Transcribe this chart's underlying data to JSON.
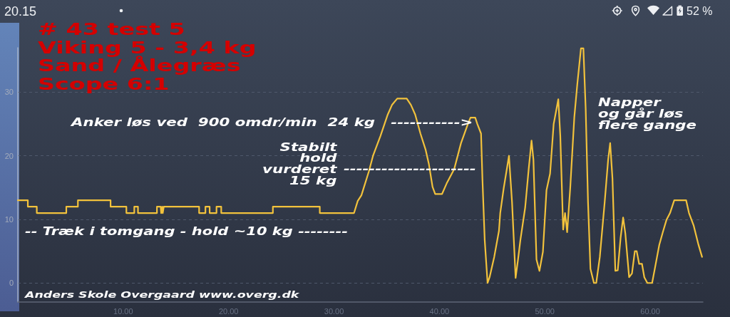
{
  "chart_data": {
    "type": "line",
    "title": "# 43 test 5",
    "subtitle": "Viking 5 - 3,4 kg\nSand / Ålegræs\nScope 6:1",
    "annotations": [
      "Anker løs ved  900 omdr/min  24 kg   ----------->",
      "Stabilt\nhold\nvurderet\n15 kg",
      "---------------------",
      "-- Træk i tomgang - hold ~10 kg --------",
      "Napper\nog går løs\nflere gange",
      "Anders Skole Overgaard www.overg.dk",
      "20.15",
      "52 %"
    ],
    "x": [
      0,
      0.95,
      0.95,
      1.8,
      1.8,
      4.6,
      4.6,
      5.7,
      5.7,
      8.8,
      8.8,
      10.3,
      10.3,
      11.05,
      11.05,
      11.4,
      11.4,
      13.2,
      13.2,
      13.55,
      13.6,
      13.7,
      13.75,
      13.85,
      17.2,
      17.2,
      17.8,
      17.8,
      18.2,
      18.2,
      18.85,
      18.85,
      19.3,
      19.3,
      24.2,
      24.2,
      28.65,
      28.65,
      31.9,
      32.25,
      32.6,
      33.3,
      33.7,
      34.4,
      35.1,
      35.5,
      36,
      36.9,
      37.3,
      37.7,
      38.2,
      38.7,
      39,
      39.35,
      39.6,
      40.25,
      40.7,
      41.4,
      42.05,
      42.7,
      42.95,
      43.4,
      43.6,
      43.95,
      44.08,
      44.3,
      44.57,
      44.76,
      45.2,
      45.65,
      45.77,
      46.1,
      46.6,
      46.89,
      47.23,
      47.46,
      47.68,
      48.14,
      48.47,
      48.74,
      48.92,
      49.21,
      49.49,
      49.82,
      50.16,
      50.5,
      50.84,
      51.28,
      51.47,
      51.74,
      51.92,
      52.12,
      52.41,
      52.8,
      53.09,
      53.43,
      53.66,
      53.88,
      54.1,
      54.33,
      54.66,
      54.88,
      55.22,
      55.68,
      56.01,
      56.2,
      56.42,
      56.69,
      56.92,
      57.19,
      57.43,
      57.64,
      58,
      58.27,
      58.54,
      58.72,
      58.95,
      59.22,
      59.44,
      59.73,
      60.18,
      60.41,
      60.86,
      61.2,
      61.54,
      61.88,
      62.28,
      63.41,
      63.68,
      64.13,
      64.58,
      64.92
    ],
    "values": [
      13,
      13,
      12,
      12,
      11,
      11,
      12,
      12,
      13,
      13,
      12,
      12,
      11,
      11,
      12,
      12,
      11,
      11,
      12,
      12,
      11,
      12,
      11,
      12,
      12,
      11,
      11,
      12,
      12,
      11,
      11,
      12,
      12,
      11,
      11,
      12,
      12,
      11,
      11,
      12.9,
      13.8,
      17.5,
      20,
      23.1,
      26.5,
      28,
      29,
      29,
      28,
      26.5,
      23.5,
      20.9,
      18.7,
      15.1,
      14,
      14,
      15.7,
      17.9,
      22,
      25,
      26,
      26,
      25,
      23.5,
      16.4,
      6.7,
      0,
      0.9,
      4.1,
      8.2,
      11,
      14.9,
      20,
      12.7,
      0.8,
      3.7,
      6.7,
      11.9,
      17.9,
      22.4,
      19.4,
      3.7,
      1.9,
      4.9,
      14.6,
      17.2,
      25,
      28.9,
      23.1,
      8.4,
      11,
      8,
      14.9,
      26.1,
      31.4,
      36.9,
      36.9,
      27.3,
      12.7,
      2.2,
      0,
      0,
      4.1,
      12.7,
      19.4,
      22,
      16.4,
      1.9,
      2,
      7.1,
      10.3,
      7.8,
      0.9,
      1.5,
      5,
      5,
      3,
      3,
      0.9,
      0,
      0,
      2,
      6,
      8,
      9.9,
      11,
      13,
      13,
      11,
      9,
      6,
      4.1
    ],
    "color": "#f2c23c",
    "xlim": [
      0,
      65
    ],
    "xticks": [
      {
        "value": 10,
        "label": "10.00"
      },
      {
        "value": 20,
        "label": "20.00"
      },
      {
        "value": 30,
        "label": "30.00"
      },
      {
        "value": 40,
        "label": "40.00"
      },
      {
        "value": 50,
        "label": "50.00"
      },
      {
        "value": 60,
        "label": "60.00"
      }
    ],
    "ylim": [
      -3,
      37
    ],
    "yticks": [
      0,
      10,
      20,
      30
    ],
    "grid": "y"
  }
}
